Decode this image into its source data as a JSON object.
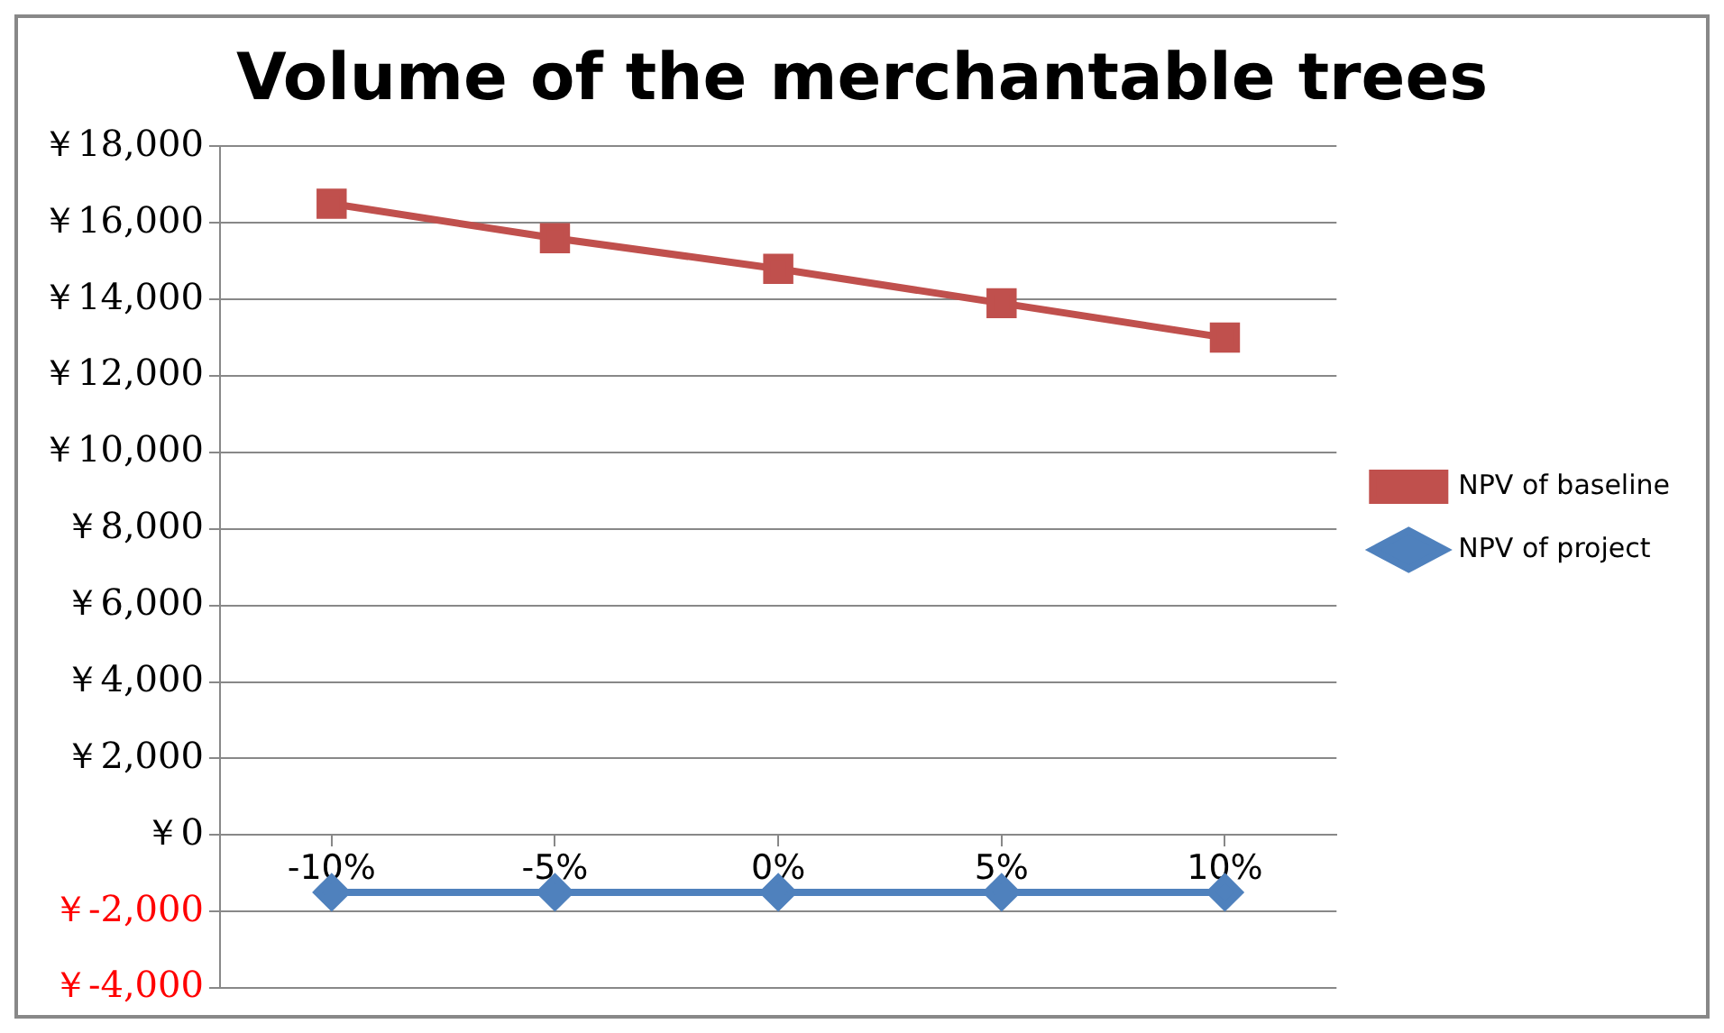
{
  "chart_data": {
    "type": "line",
    "title": "Volume of the merchantable trees",
    "categories": [
      "-10%",
      "-5%",
      "0%",
      "5%",
      "10%"
    ],
    "series": [
      {
        "name": "NPV of baseline",
        "color": "#c0504d",
        "marker": "square",
        "values": [
          16500,
          15600,
          14800,
          13900,
          13000
        ]
      },
      {
        "name": "NPV of project",
        "color": "#4f81bd",
        "marker": "diamond",
        "values": [
          -1500,
          -1500,
          -1500,
          -1500,
          -1500
        ]
      }
    ],
    "ylim": [
      -4000,
      18000
    ],
    "yticks": [
      {
        "value": -4000,
        "label": "￥-4,000"
      },
      {
        "value": -2000,
        "label": "￥-2,000"
      },
      {
        "value": 0,
        "label": "￥0"
      },
      {
        "value": 2000,
        "label": "￥2,000"
      },
      {
        "value": 4000,
        "label": "￥4,000"
      },
      {
        "value": 6000,
        "label": "￥6,000"
      },
      {
        "value": 8000,
        "label": "￥8,000"
      },
      {
        "value": 10000,
        "label": "￥10,000"
      },
      {
        "value": 12000,
        "label": "￥12,000"
      },
      {
        "value": 14000,
        "label": "￥14,000"
      },
      {
        "value": 16000,
        "label": "￥16,000"
      },
      {
        "value": 18000,
        "label": "￥18,000"
      }
    ],
    "grid": "y",
    "legend": "right",
    "line_style": "solid"
  }
}
